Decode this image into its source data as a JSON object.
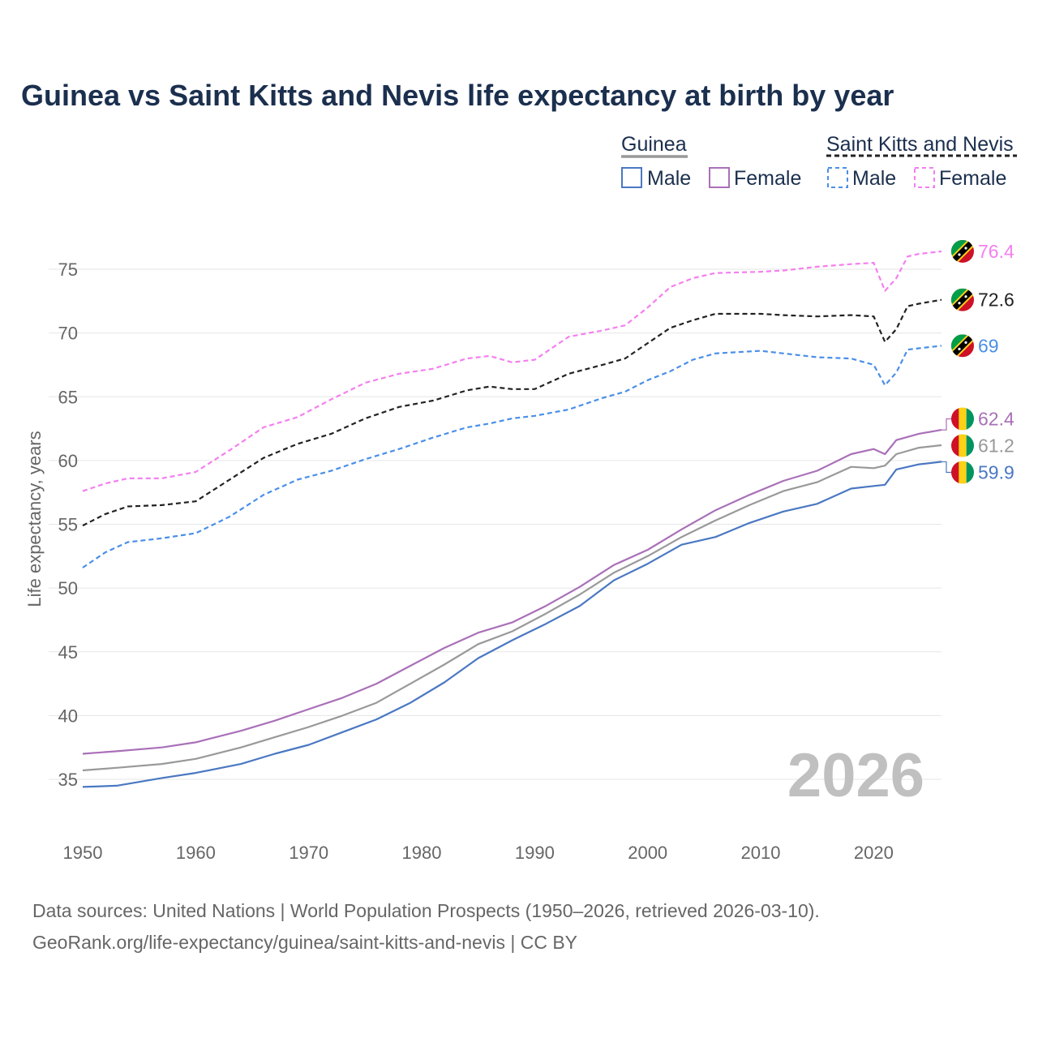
{
  "chart_data": {
    "type": "line",
    "title": "Guinea vs Saint Kitts and Nevis life expectancy at birth by year",
    "ylabel": "Life expectancy, years",
    "xlabel": "",
    "xlim": [
      1950,
      2026
    ],
    "ylim": [
      32,
      77.5
    ],
    "x_ticks": [
      "1950",
      "1960",
      "1970",
      "1980",
      "1990",
      "2000",
      "2010",
      "2020"
    ],
    "y_ticks": [
      "35",
      "40",
      "45",
      "50",
      "55",
      "60",
      "65",
      "70",
      "75"
    ],
    "year_label": "2026",
    "legend": {
      "groups": [
        {
          "name": "Guinea",
          "entries": [
            "Male",
            "Female"
          ]
        },
        {
          "name": "Saint Kitts and Nevis",
          "entries": [
            "Male",
            "Female"
          ]
        }
      ]
    },
    "series": [
      {
        "name": "Saint Kitts and Nevis Female",
        "group": "Saint Kitts and Nevis",
        "color": "#f47fef",
        "dash": "dashed",
        "end_label": "76.4",
        "points": [
          [
            1950,
            57.6
          ],
          [
            1952,
            58.2
          ],
          [
            1954,
            58.6
          ],
          [
            1957,
            58.6
          ],
          [
            1960,
            59.1
          ],
          [
            1963,
            60.8
          ],
          [
            1966,
            62.6
          ],
          [
            1969,
            63.4
          ],
          [
            1972,
            64.8
          ],
          [
            1975,
            66.1
          ],
          [
            1978,
            66.8
          ],
          [
            1981,
            67.2
          ],
          [
            1984,
            68.0
          ],
          [
            1986,
            68.2
          ],
          [
            1988,
            67.7
          ],
          [
            1990,
            67.9
          ],
          [
            1993,
            69.7
          ],
          [
            1996,
            70.2
          ],
          [
            1998,
            70.6
          ],
          [
            2000,
            72.0
          ],
          [
            2002,
            73.6
          ],
          [
            2004,
            74.3
          ],
          [
            2006,
            74.7
          ],
          [
            2010,
            74.8
          ],
          [
            2012,
            74.9
          ],
          [
            2015,
            75.2
          ],
          [
            2018,
            75.4
          ],
          [
            2020,
            75.5
          ],
          [
            2021,
            73.3
          ],
          [
            2022,
            74.3
          ],
          [
            2023,
            76.0
          ],
          [
            2024,
            76.2
          ],
          [
            2026,
            76.4
          ]
        ]
      },
      {
        "name": "Saint Kitts and Nevis Both",
        "group": "Saint Kitts and Nevis",
        "color": "#222222",
        "dash": "dashed",
        "end_label": "72.6",
        "points": [
          [
            1950,
            54.9
          ],
          [
            1952,
            55.8
          ],
          [
            1954,
            56.4
          ],
          [
            1957,
            56.5
          ],
          [
            1960,
            56.8
          ],
          [
            1963,
            58.5
          ],
          [
            1966,
            60.2
          ],
          [
            1969,
            61.3
          ],
          [
            1972,
            62.1
          ],
          [
            1975,
            63.3
          ],
          [
            1978,
            64.2
          ],
          [
            1981,
            64.7
          ],
          [
            1984,
            65.5
          ],
          [
            1986,
            65.8
          ],
          [
            1988,
            65.6
          ],
          [
            1990,
            65.6
          ],
          [
            1993,
            66.8
          ],
          [
            1996,
            67.5
          ],
          [
            1998,
            68.0
          ],
          [
            2000,
            69.2
          ],
          [
            2002,
            70.4
          ],
          [
            2004,
            71.0
          ],
          [
            2006,
            71.5
          ],
          [
            2010,
            71.5
          ],
          [
            2012,
            71.4
          ],
          [
            2015,
            71.3
          ],
          [
            2018,
            71.4
          ],
          [
            2020,
            71.3
          ],
          [
            2021,
            69.3
          ],
          [
            2022,
            70.3
          ],
          [
            2023,
            72.1
          ],
          [
            2024,
            72.3
          ],
          [
            2026,
            72.6
          ]
        ]
      },
      {
        "name": "Saint Kitts and Nevis Male",
        "group": "Saint Kitts and Nevis",
        "color": "#4a8fe8",
        "dash": "dashed",
        "end_label": "69",
        "points": [
          [
            1950,
            51.6
          ],
          [
            1952,
            52.8
          ],
          [
            1954,
            53.6
          ],
          [
            1957,
            53.9
          ],
          [
            1960,
            54.3
          ],
          [
            1963,
            55.6
          ],
          [
            1966,
            57.3
          ],
          [
            1969,
            58.5
          ],
          [
            1972,
            59.2
          ],
          [
            1975,
            60.1
          ],
          [
            1978,
            60.9
          ],
          [
            1981,
            61.8
          ],
          [
            1984,
            62.6
          ],
          [
            1986,
            62.9
          ],
          [
            1988,
            63.3
          ],
          [
            1990,
            63.5
          ],
          [
            1993,
            64.0
          ],
          [
            1996,
            64.9
          ],
          [
            1998,
            65.4
          ],
          [
            2000,
            66.3
          ],
          [
            2002,
            67.0
          ],
          [
            2004,
            67.9
          ],
          [
            2006,
            68.4
          ],
          [
            2010,
            68.6
          ],
          [
            2012,
            68.4
          ],
          [
            2015,
            68.1
          ],
          [
            2018,
            68.0
          ],
          [
            2020,
            67.5
          ],
          [
            2021,
            65.9
          ],
          [
            2022,
            66.9
          ],
          [
            2023,
            68.7
          ],
          [
            2024,
            68.8
          ],
          [
            2026,
            69.0
          ]
        ]
      },
      {
        "name": "Guinea Female",
        "group": "Guinea",
        "color": "#a970b8",
        "dash": "solid",
        "end_label": "62.4",
        "points": [
          [
            1950,
            37.0
          ],
          [
            1953,
            37.2
          ],
          [
            1957,
            37.5
          ],
          [
            1960,
            37.9
          ],
          [
            1964,
            38.8
          ],
          [
            1967,
            39.6
          ],
          [
            1970,
            40.5
          ],
          [
            1973,
            41.4
          ],
          [
            1976,
            42.5
          ],
          [
            1979,
            43.9
          ],
          [
            1982,
            45.3
          ],
          [
            1985,
            46.5
          ],
          [
            1988,
            47.3
          ],
          [
            1991,
            48.6
          ],
          [
            1994,
            50.1
          ],
          [
            1997,
            51.8
          ],
          [
            2000,
            53.0
          ],
          [
            2003,
            54.6
          ],
          [
            2006,
            56.1
          ],
          [
            2009,
            57.3
          ],
          [
            2012,
            58.4
          ],
          [
            2015,
            59.2
          ],
          [
            2018,
            60.5
          ],
          [
            2020,
            60.9
          ],
          [
            2021,
            60.5
          ],
          [
            2022,
            61.6
          ],
          [
            2024,
            62.1
          ],
          [
            2026,
            62.4
          ]
        ]
      },
      {
        "name": "Guinea Both",
        "group": "Guinea",
        "color": "#999999",
        "dash": "solid",
        "end_label": "61.2",
        "points": [
          [
            1950,
            35.7
          ],
          [
            1953,
            35.9
          ],
          [
            1957,
            36.2
          ],
          [
            1960,
            36.6
          ],
          [
            1964,
            37.5
          ],
          [
            1967,
            38.3
          ],
          [
            1970,
            39.1
          ],
          [
            1973,
            40.0
          ],
          [
            1976,
            41.0
          ],
          [
            1979,
            42.5
          ],
          [
            1982,
            44.0
          ],
          [
            1985,
            45.6
          ],
          [
            1988,
            46.6
          ],
          [
            1991,
            48.0
          ],
          [
            1994,
            49.5
          ],
          [
            1997,
            51.2
          ],
          [
            2000,
            52.5
          ],
          [
            2003,
            54.0
          ],
          [
            2006,
            55.3
          ],
          [
            2009,
            56.5
          ],
          [
            2012,
            57.6
          ],
          [
            2015,
            58.3
          ],
          [
            2018,
            59.5
          ],
          [
            2020,
            59.4
          ],
          [
            2021,
            59.6
          ],
          [
            2022,
            60.5
          ],
          [
            2024,
            61.0
          ],
          [
            2026,
            61.2
          ]
        ]
      },
      {
        "name": "Guinea Male",
        "group": "Guinea",
        "color": "#4a78c2",
        "dash": "solid",
        "end_label": "59.9",
        "points": [
          [
            1950,
            34.4
          ],
          [
            1953,
            34.5
          ],
          [
            1957,
            35.1
          ],
          [
            1960,
            35.5
          ],
          [
            1964,
            36.2
          ],
          [
            1967,
            37.0
          ],
          [
            1970,
            37.7
          ],
          [
            1973,
            38.7
          ],
          [
            1976,
            39.7
          ],
          [
            1979,
            41.0
          ],
          [
            1982,
            42.6
          ],
          [
            1985,
            44.5
          ],
          [
            1988,
            45.9
          ],
          [
            1991,
            47.2
          ],
          [
            1994,
            48.6
          ],
          [
            1997,
            50.6
          ],
          [
            2000,
            51.9
          ],
          [
            2003,
            53.4
          ],
          [
            2006,
            54.0
          ],
          [
            2009,
            55.1
          ],
          [
            2012,
            56.0
          ],
          [
            2015,
            56.6
          ],
          [
            2018,
            57.8
          ],
          [
            2020,
            58.0
          ],
          [
            2021,
            58.1
          ],
          [
            2022,
            59.3
          ],
          [
            2024,
            59.7
          ],
          [
            2026,
            59.9
          ]
        ]
      }
    ]
  },
  "source": {
    "line1": "Data sources: United Nations | World Population Prospects (1950–2026, retrieved 2026-03-10).",
    "line2": "GeoRank.org/life-expectancy/guinea/saint-kitts-and-nevis | CC BY"
  }
}
